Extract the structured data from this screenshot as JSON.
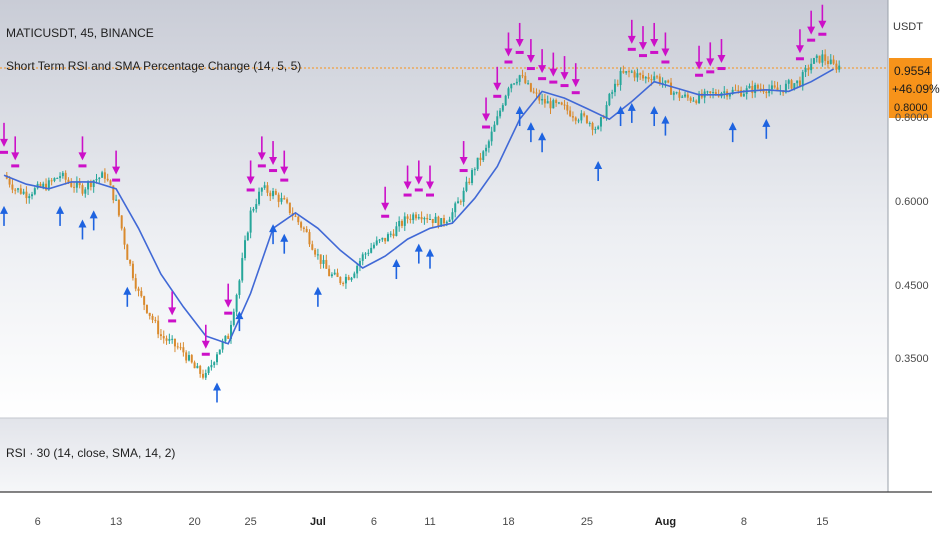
{
  "header": {
    "symbol": "MATICUSDT, 45, BINANCE",
    "indicator": "Short Term RSI and SMA Percentage Change (14, 5, 5)",
    "rsi_pane": "RSI · 30 (14, close, SMA, 14, 2)"
  },
  "currency": "USDT",
  "price_badge": {
    "price": "0.9554",
    "change": "+46.09%",
    "lower": "0.8000",
    "color": "#f7931a"
  },
  "colors": {
    "sma_line": "#4169d6",
    "buy_arrow": "#1e63e0",
    "sell_arrow": "#cc10c8",
    "candle_up": "#26a69a",
    "candle_down": "#d98a2e",
    "last_price_line": "#f7931a"
  },
  "chart_data": {
    "type": "line",
    "title": "",
    "xlabel": "",
    "ylabel": "",
    "x_tick_labels": [
      {
        "t": 3,
        "label": "6"
      },
      {
        "t": 10,
        "label": "13"
      },
      {
        "t": 17,
        "label": "20"
      },
      {
        "t": 22,
        "label": "25"
      },
      {
        "t": 28,
        "label": "Jul"
      },
      {
        "t": 33,
        "label": "6"
      },
      {
        "t": 38,
        "label": "11"
      },
      {
        "t": 45,
        "label": "18"
      },
      {
        "t": 52,
        "label": "25"
      },
      {
        "t": 59,
        "label": "Aug"
      },
      {
        "t": 66,
        "label": "8"
      },
      {
        "t": 73,
        "label": "15"
      }
    ],
    "y_tick_labels": [
      {
        "v": 0.35,
        "label": "0.3500"
      },
      {
        "v": 0.45,
        "label": "0.4500"
      },
      {
        "v": 0.6,
        "label": "0.6000"
      },
      {
        "v": 0.8,
        "label": "0.8000"
      }
    ],
    "y_scale": "log",
    "ylim": [
      0.29,
      1.16
    ],
    "xlim": [
      0,
      76
    ],
    "price": [
      [
        0,
        0.66
      ],
      [
        1,
        0.63
      ],
      [
        2,
        0.62
      ],
      [
        3,
        0.63
      ],
      [
        4,
        0.64
      ],
      [
        5,
        0.66
      ],
      [
        6,
        0.64
      ],
      [
        7,
        0.63
      ],
      [
        8,
        0.65
      ],
      [
        9,
        0.66
      ],
      [
        10,
        0.6
      ],
      [
        11,
        0.5
      ],
      [
        12,
        0.44
      ],
      [
        13,
        0.41
      ],
      [
        14,
        0.38
      ],
      [
        15,
        0.37
      ],
      [
        16,
        0.36
      ],
      [
        17,
        0.34
      ],
      [
        18,
        0.33
      ],
      [
        19,
        0.36
      ],
      [
        20,
        0.38
      ],
      [
        21,
        0.46
      ],
      [
        22,
        0.58
      ],
      [
        23,
        0.63
      ],
      [
        24,
        0.62
      ],
      [
        25,
        0.6
      ],
      [
        26,
        0.57
      ],
      [
        27,
        0.54
      ],
      [
        28,
        0.5
      ],
      [
        29,
        0.47
      ],
      [
        30,
        0.46
      ],
      [
        31,
        0.47
      ],
      [
        32,
        0.5
      ],
      [
        33,
        0.52
      ],
      [
        34,
        0.53
      ],
      [
        35,
        0.55
      ],
      [
        36,
        0.57
      ],
      [
        37,
        0.58
      ],
      [
        38,
        0.57
      ],
      [
        39,
        0.56
      ],
      [
        40,
        0.58
      ],
      [
        41,
        0.62
      ],
      [
        42,
        0.68
      ],
      [
        43,
        0.72
      ],
      [
        44,
        0.8
      ],
      [
        45,
        0.9
      ],
      [
        46,
        0.93
      ],
      [
        47,
        0.88
      ],
      [
        48,
        0.85
      ],
      [
        49,
        0.84
      ],
      [
        50,
        0.83
      ],
      [
        51,
        0.81
      ],
      [
        52,
        0.8
      ],
      [
        53,
        0.77
      ],
      [
        54,
        0.86
      ],
      [
        55,
        0.93
      ],
      [
        56,
        0.94
      ],
      [
        57,
        0.92
      ],
      [
        58,
        0.93
      ],
      [
        59,
        0.9
      ],
      [
        60,
        0.87
      ],
      [
        61,
        0.86
      ],
      [
        62,
        0.86
      ],
      [
        63,
        0.87
      ],
      [
        64,
        0.88
      ],
      [
        65,
        0.88
      ],
      [
        66,
        0.88
      ],
      [
        67,
        0.89
      ],
      [
        68,
        0.89
      ],
      [
        69,
        0.88
      ],
      [
        70,
        0.9
      ],
      [
        71,
        0.91
      ],
      [
        72,
        0.97
      ],
      [
        73,
        0.99
      ],
      [
        74,
        0.96
      ]
    ],
    "series": [
      {
        "values": [
          [
            0,
            0.66
          ],
          [
            2,
            0.64
          ],
          [
            4,
            0.63
          ],
          [
            6,
            0.645
          ],
          [
            8,
            0.645
          ],
          [
            10,
            0.63
          ],
          [
            12,
            0.55
          ],
          [
            14,
            0.47
          ],
          [
            16,
            0.42
          ],
          [
            18,
            0.38
          ],
          [
            20,
            0.37
          ],
          [
            22,
            0.44
          ],
          [
            24,
            0.55
          ],
          [
            26,
            0.58
          ],
          [
            28,
            0.55
          ],
          [
            30,
            0.51
          ],
          [
            32,
            0.48
          ],
          [
            34,
            0.5
          ],
          [
            36,
            0.53
          ],
          [
            38,
            0.55
          ],
          [
            40,
            0.56
          ],
          [
            42,
            0.61
          ],
          [
            44,
            0.68
          ],
          [
            46,
            0.8
          ],
          [
            48,
            0.88
          ],
          [
            50,
            0.86
          ],
          [
            52,
            0.83
          ],
          [
            54,
            0.8
          ],
          [
            56,
            0.85
          ],
          [
            58,
            0.91
          ],
          [
            60,
            0.89
          ],
          [
            62,
            0.87
          ],
          [
            64,
            0.87
          ],
          [
            66,
            0.88
          ],
          [
            68,
            0.885
          ],
          [
            70,
            0.88
          ],
          [
            72,
            0.91
          ],
          [
            74,
            0.95
          ]
        ]
      }
    ],
    "buy_signals": [
      0,
      5,
      7,
      8,
      11,
      19,
      21,
      24,
      25,
      28,
      35,
      37,
      38,
      46,
      47,
      48,
      53,
      55,
      56,
      58,
      59,
      65,
      68
    ],
    "sell_signals": [
      0,
      1,
      7,
      10,
      15,
      18,
      20,
      22,
      23,
      24,
      25,
      34,
      36,
      37,
      38,
      41,
      43,
      44,
      45,
      46,
      47,
      48,
      49,
      50,
      51,
      56,
      57,
      58,
      59,
      62,
      63,
      64,
      71,
      72,
      73
    ]
  }
}
